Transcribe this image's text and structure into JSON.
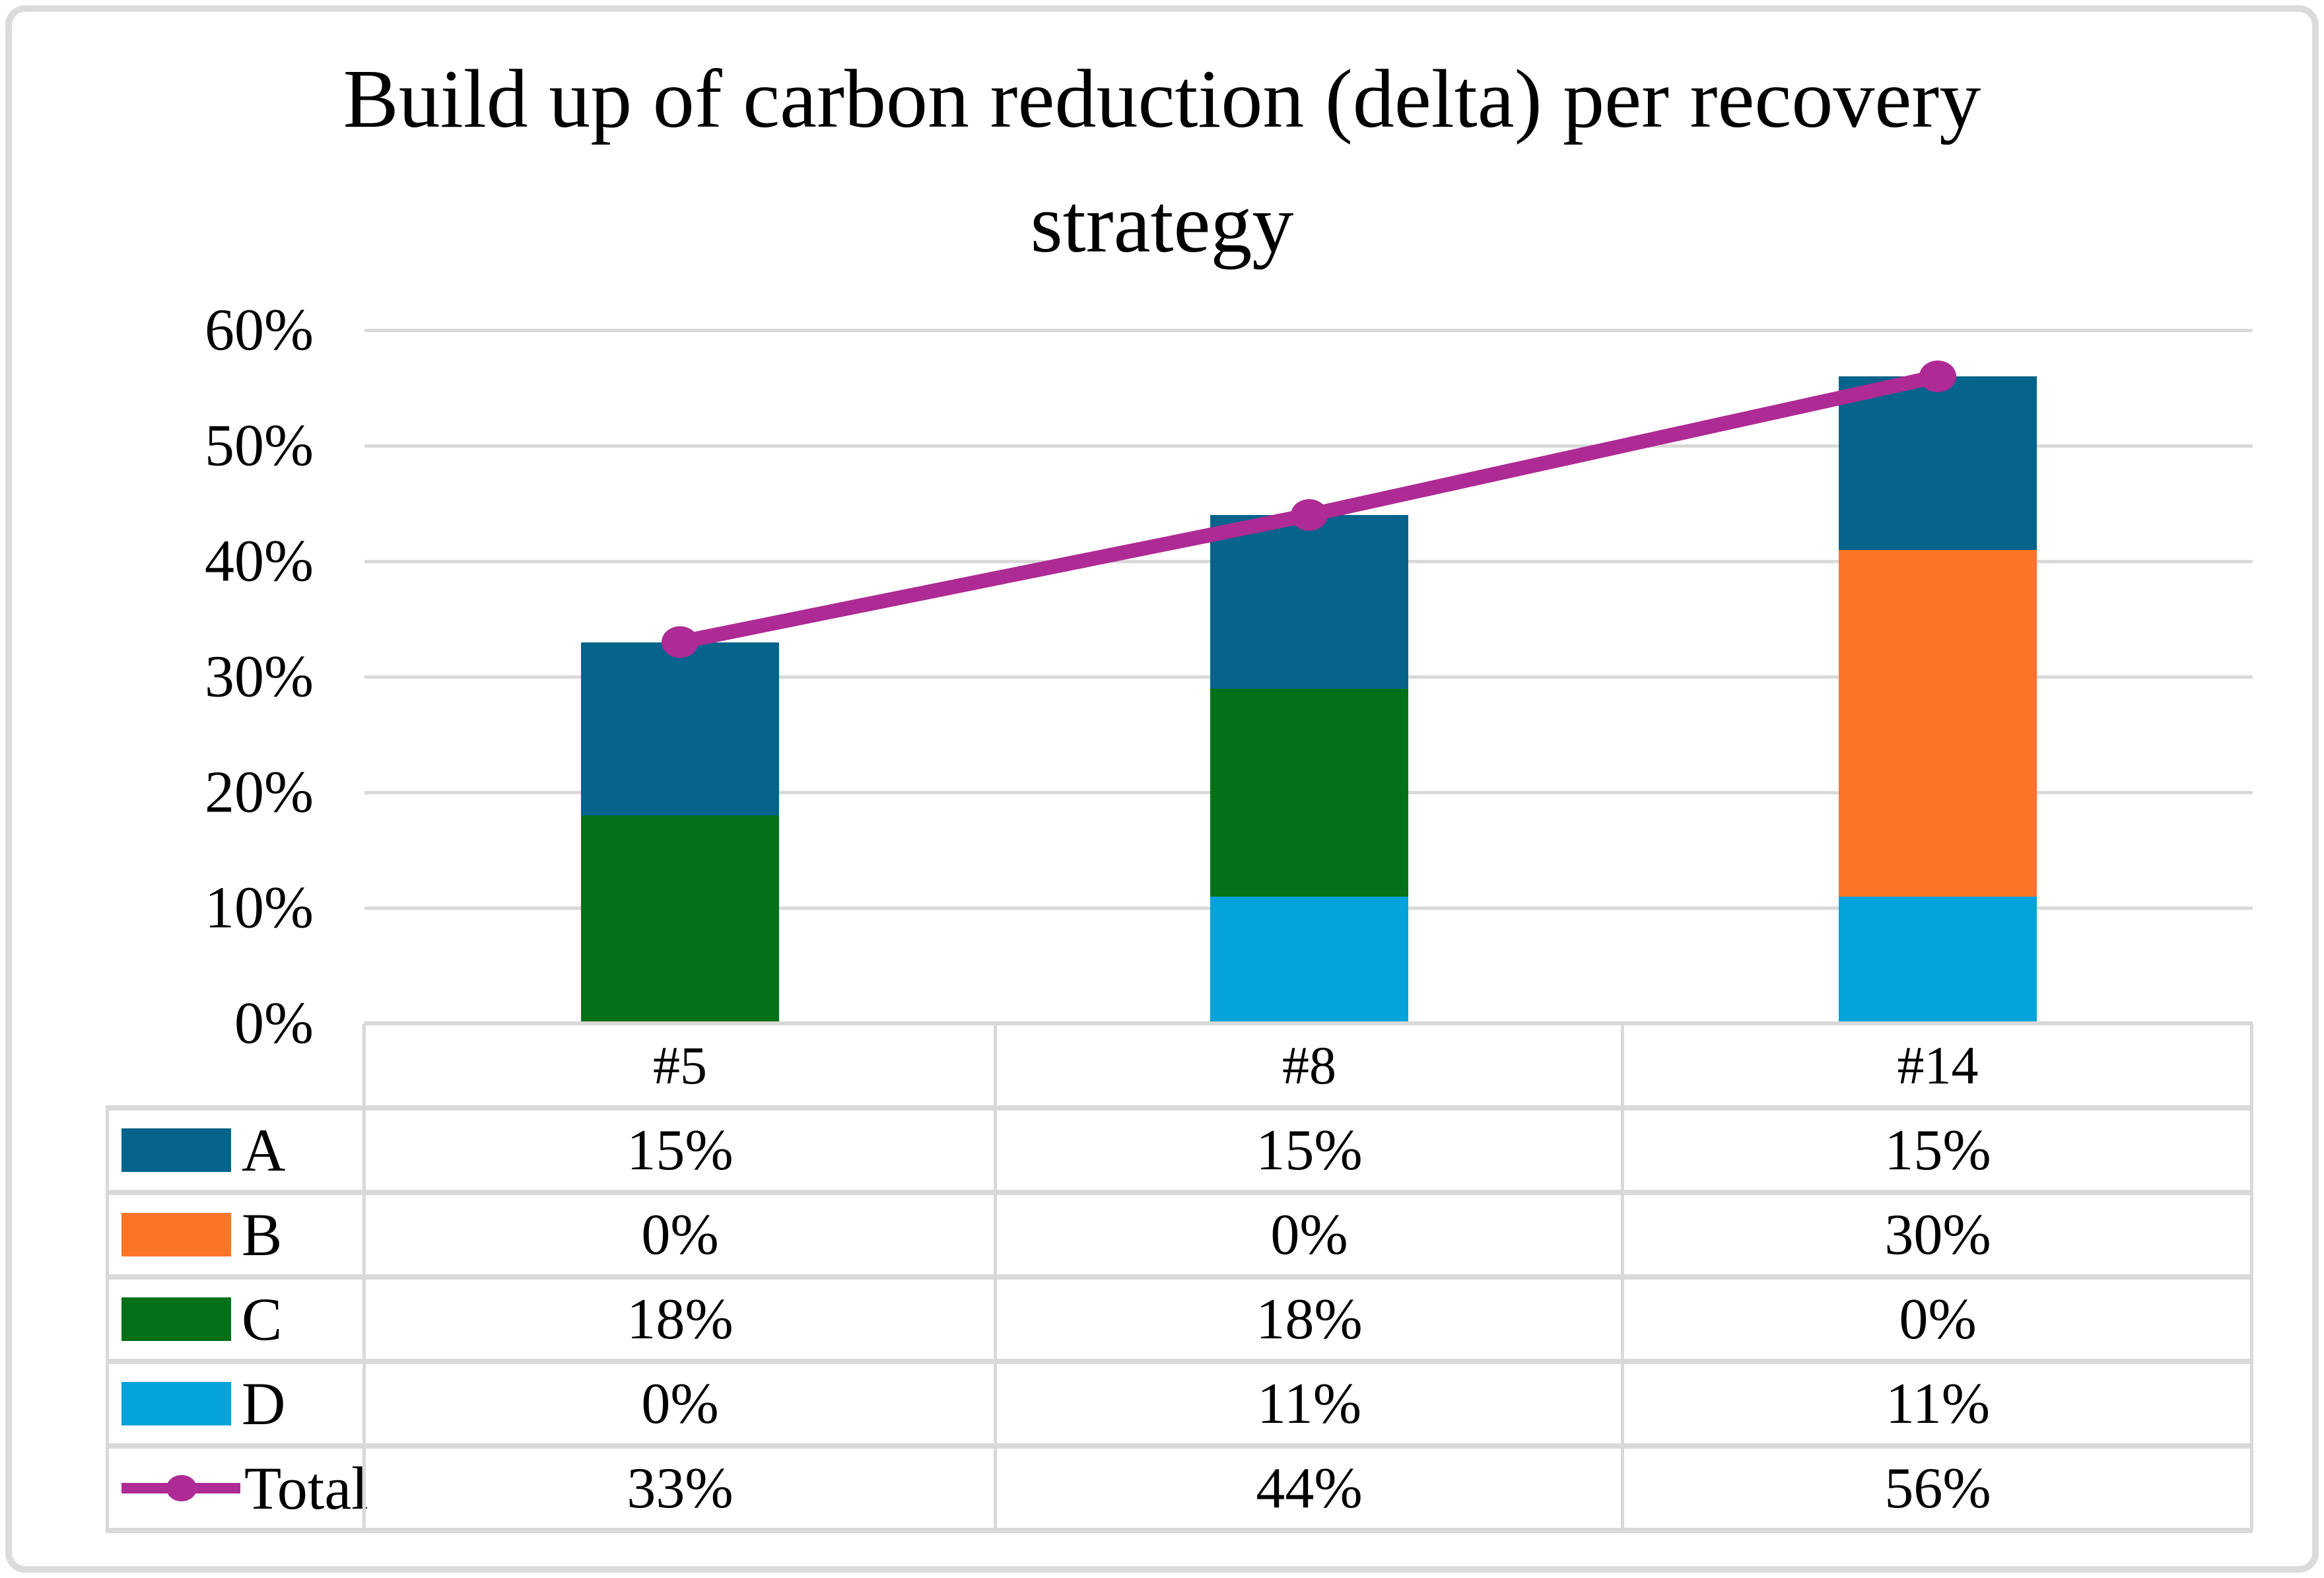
{
  "title_lines": [
    "Build up of carbon reduction (delta) per recovery",
    "strategy"
  ],
  "chart_data": {
    "type": "bar",
    "subtype": "stacked-column-with-line-overlay",
    "title": "Build up of carbon reduction (delta) per recovery strategy",
    "categories": [
      "#5",
      "#8",
      "#14"
    ],
    "series": [
      {
        "name": "A",
        "color": "#06648C",
        "values": [
          15,
          15,
          15
        ]
      },
      {
        "name": "B",
        "color": "#FC7527",
        "values": [
          0,
          0,
          30
        ]
      },
      {
        "name": "C",
        "color": "#047018",
        "values": [
          18,
          18,
          0
        ]
      },
      {
        "name": "D",
        "color": "#05A3DB",
        "values": [
          0,
          11,
          11
        ]
      }
    ],
    "line_series": {
      "name": "Total",
      "color": "#AE2A94",
      "values": [
        33,
        44,
        56
      ]
    },
    "stack_order": [
      "D",
      "C",
      "B",
      "A"
    ],
    "y_axis": {
      "min": 0,
      "max": 60,
      "step": 10,
      "tick_labels": [
        "0%",
        "10%",
        "20%",
        "30%",
        "40%",
        "50%",
        "60%"
      ],
      "unit": "percent"
    },
    "grid": true,
    "gridline_color": "#D9D9D9",
    "legend_position": "bottom-table-left-column"
  },
  "table": {
    "column_headers": [
      "#5",
      "#8",
      "#14"
    ],
    "rows": [
      {
        "label": "A",
        "swatch_color": "#06648C",
        "values": [
          "15%",
          "15%",
          "15%"
        ]
      },
      {
        "label": "B",
        "swatch_color": "#FC7527",
        "values": [
          "0%",
          "0%",
          "30%"
        ]
      },
      {
        "label": "C",
        "swatch_color": "#047018",
        "values": [
          "18%",
          "18%",
          "0%"
        ]
      },
      {
        "label": "D",
        "swatch_color": "#05A3DB",
        "values": [
          "0%",
          "11%",
          "11%"
        ]
      },
      {
        "label": "Total",
        "marker_color": "#AE2A94",
        "values": [
          "33%",
          "44%",
          "56%"
        ]
      }
    ]
  },
  "colors": {
    "background": "#FFFFFF",
    "text": "#000000",
    "gridline": "#D9D9D9",
    "table_border": "#D9D9D9",
    "frame_border": "#DBDBDB"
  }
}
